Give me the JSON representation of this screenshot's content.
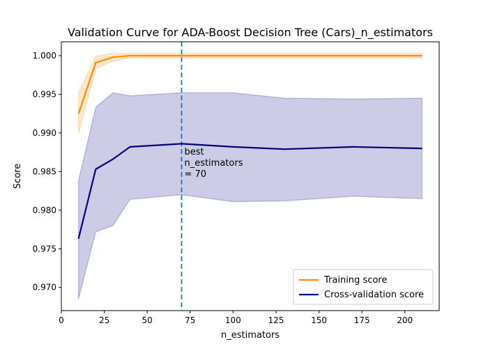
{
  "chart_data": {
    "type": "line",
    "title": "Validation Curve for ADA-Boost Decision Tree (Cars)_n_estimators",
    "xlabel": "n_estimators",
    "ylabel": "Score",
    "xlim": [
      0,
      220
    ],
    "ylim": [
      0.967,
      1.0018
    ],
    "xticks": [
      0,
      25,
      50,
      75,
      100,
      125,
      150,
      175,
      200
    ],
    "yticks": [
      0.97,
      0.975,
      0.98,
      0.985,
      0.99,
      0.995,
      1.0
    ],
    "ytick_labels": [
      "0.970",
      "0.975",
      "0.980",
      "0.985",
      "0.990",
      "0.995",
      "1.000"
    ],
    "grid": false,
    "legend_position": "lower-right",
    "x": [
      10,
      20,
      30,
      40,
      70,
      100,
      130,
      170,
      210
    ],
    "series": [
      {
        "name": "Training score",
        "color": "#ff8c00",
        "values": [
          0.9925,
          0.9991,
          0.9998,
          1.0,
          1.0,
          1.0,
          1.0,
          1.0,
          1.0
        ],
        "band_upper": [
          0.9952,
          0.9999,
          1.0003,
          1.0003,
          1.0003,
          1.0003,
          1.0003,
          1.0003,
          1.0003
        ],
        "band_lower": [
          0.9899,
          0.9983,
          0.9993,
          0.9997,
          0.9997,
          0.9997,
          0.9997,
          0.9997,
          0.9997
        ]
      },
      {
        "name": "Cross-validation score",
        "color": "#000080",
        "values": [
          0.9763,
          0.9853,
          0.9866,
          0.9882,
          0.9886,
          0.9882,
          0.9879,
          0.9882,
          0.988
        ],
        "band_upper": [
          0.9838,
          0.9933,
          0.9952,
          0.9948,
          0.9952,
          0.9952,
          0.9945,
          0.9944,
          0.9945
        ],
        "band_lower": [
          0.9685,
          0.9772,
          0.978,
          0.9814,
          0.982,
          0.9811,
          0.9812,
          0.9818,
          0.9815
        ]
      }
    ],
    "best_line": {
      "x": 70,
      "color": "#1f77b4",
      "annotation": [
        "best",
        "n_estimators",
        "= 70"
      ],
      "annotation_y": 0.9872
    }
  }
}
